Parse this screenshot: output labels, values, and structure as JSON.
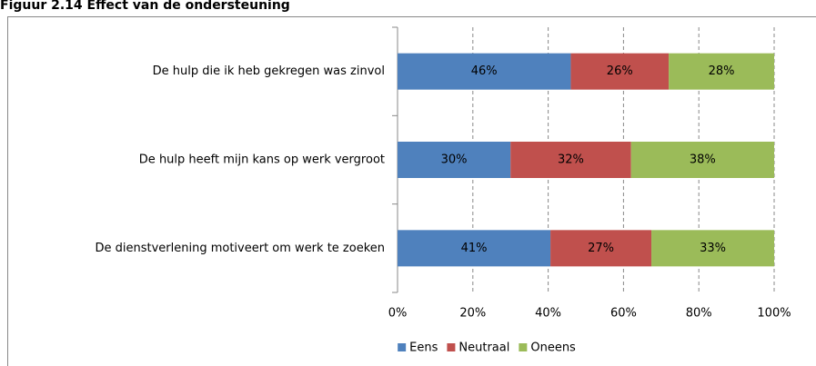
{
  "chart_data": {
    "type": "stacked-barh",
    "title": "Figuur 2.14 Effect van de ondersteuning",
    "categories": [
      "De hulp die ik heb gekregen was zinvol",
      "De hulp heeft mijn kans op werk vergroot",
      "De dienstverlening motiveert om werk te zoeken"
    ],
    "series": [
      {
        "name": "Eens",
        "color": "#4f81bd",
        "values": [
          46,
          30,
          40.6
        ],
        "value_labels": [
          "46%",
          "30%",
          "41%"
        ]
      },
      {
        "name": "Neutraal",
        "color": "#c0504d",
        "values": [
          26,
          32,
          26.8
        ],
        "value_labels": [
          "26%",
          "32%",
          "27%"
        ]
      },
      {
        "name": "Oneens",
        "color": "#9bbb59",
        "values": [
          28,
          38,
          32.6
        ],
        "value_labels": [
          "28%",
          "38%",
          "33%"
        ]
      }
    ],
    "xlim": [
      0,
      100
    ],
    "xticks": [
      {
        "value": 0,
        "label": "0%"
      },
      {
        "value": 20,
        "label": "20%"
      },
      {
        "value": 40,
        "label": "40%"
      },
      {
        "value": 60,
        "label": "60%"
      },
      {
        "value": 80,
        "label": "80%"
      },
      {
        "value": 100,
        "label": "100%"
      }
    ],
    "grid": true,
    "legend": "bottom"
  }
}
